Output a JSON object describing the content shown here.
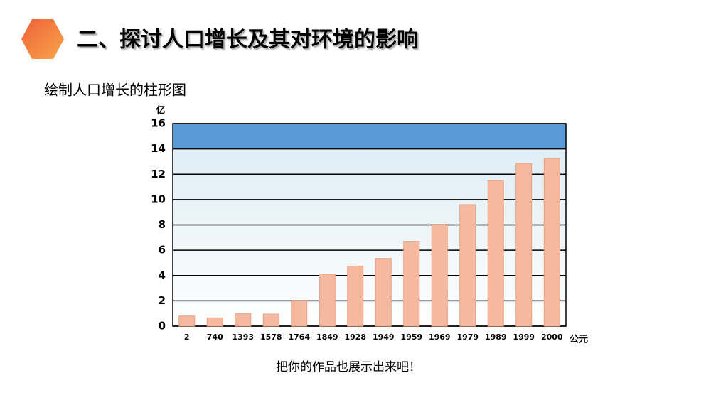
{
  "header": {
    "title": "二、探讨人口增长及其对环境的影响",
    "subtitle": "绘制人口增长的柱形图"
  },
  "chart_data": {
    "type": "bar",
    "y_label": "亿",
    "x_label": "公元",
    "categories": [
      "2",
      "740",
      "1393",
      "1578",
      "1764",
      "1849",
      "1928",
      "1949",
      "1959",
      "1969",
      "1979",
      "1989",
      "1999",
      "2000"
    ],
    "values": [
      0.8,
      0.65,
      1.0,
      0.95,
      2.0,
      4.1,
      4.75,
      5.35,
      6.7,
      8.05,
      9.6,
      11.5,
      12.85,
      13.25
    ],
    "color": "#f5b9a0",
    "ylim": [
      0,
      16
    ],
    "yticks": [
      0,
      2,
      4,
      6,
      8,
      10,
      12,
      14,
      16
    ],
    "grid": true
  },
  "footer": {
    "text": "把你的作品也展示出来吧！"
  }
}
